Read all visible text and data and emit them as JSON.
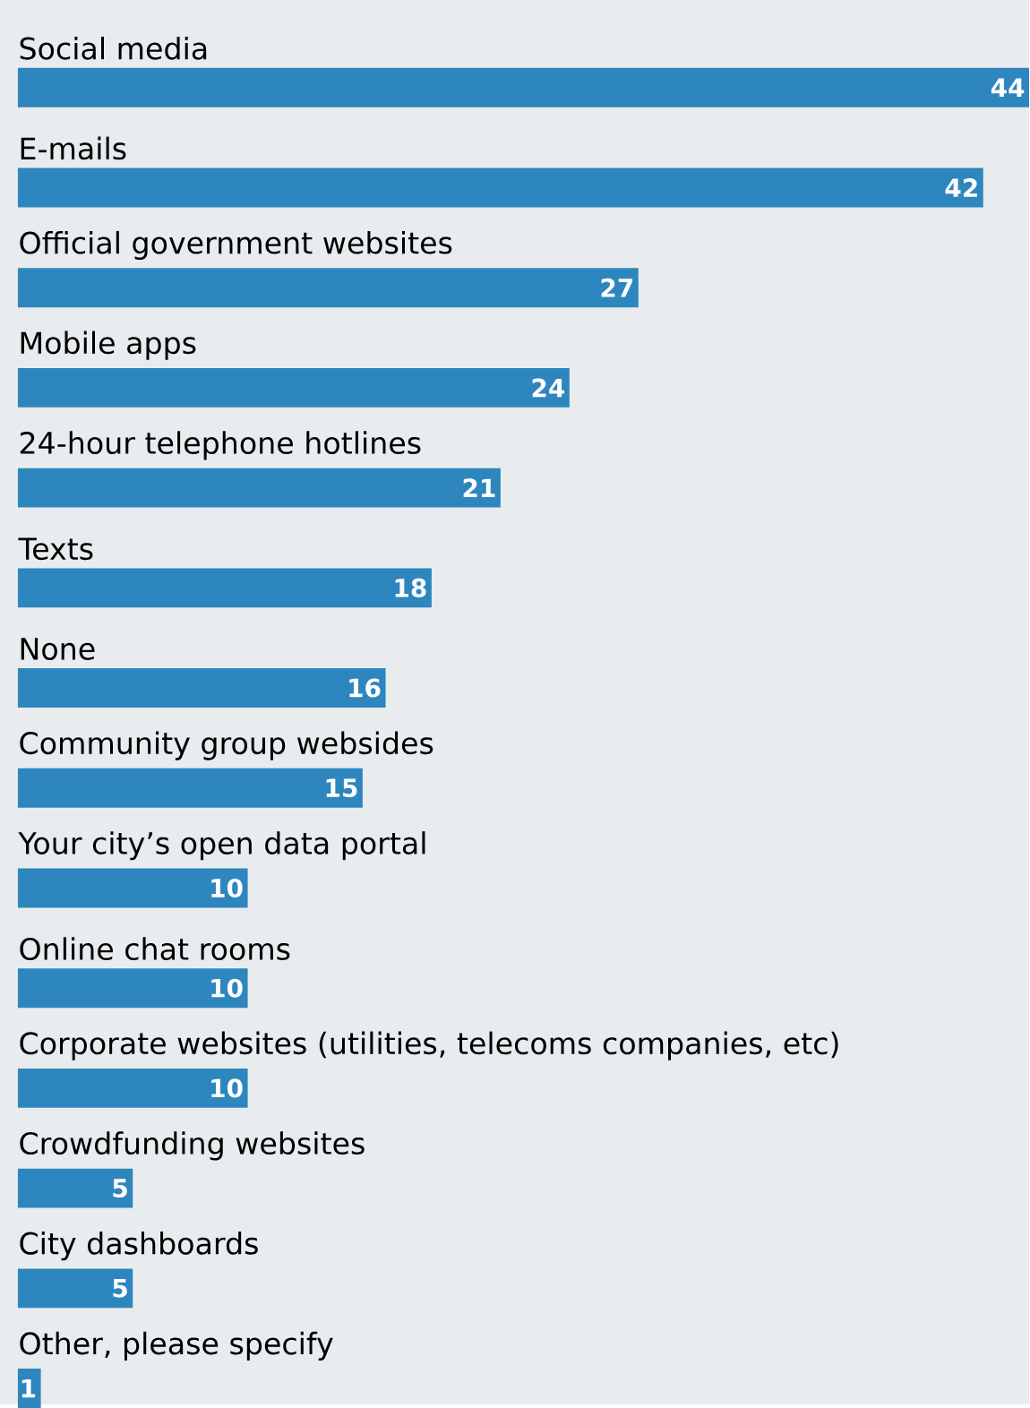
{
  "chart_data": {
    "type": "bar",
    "orientation": "horizontal",
    "data_labels": true,
    "color": "#2e86be",
    "categories": [
      "Social media",
      "E-mails",
      "Official government websites",
      "Mobile apps",
      "24-hour telephone hotlines",
      "Texts",
      "None",
      "Community group websides",
      "Your city’s open data portal",
      "Online chat rooms",
      "Corporate websites (utilities, telecoms companies, etc)",
      "Crowdfunding websites",
      "City dashboards",
      "Other, please specify"
    ],
    "values": [
      44,
      42,
      27,
      24,
      21,
      18,
      16,
      15,
      10,
      10,
      10,
      5,
      5,
      1
    ]
  }
}
